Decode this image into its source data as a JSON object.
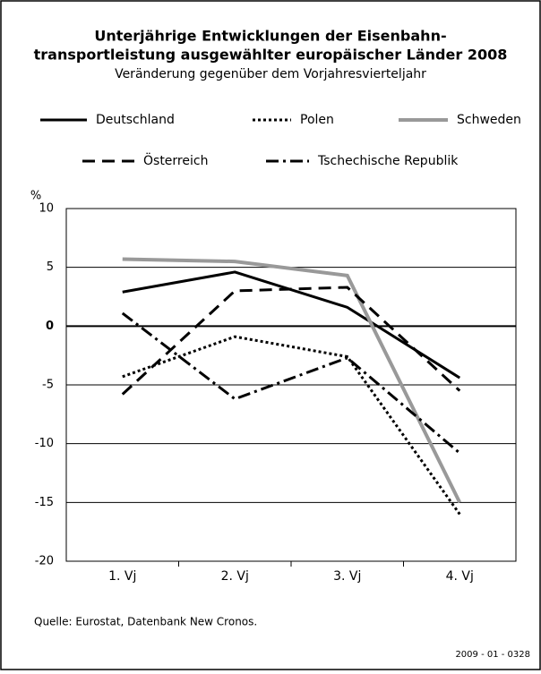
{
  "chart_data": {
    "type": "line",
    "title": [
      "Unterjährige Entwicklungen der Eisenbahn-",
      "transportleistung ausgewählter europäischer Länder 2008"
    ],
    "subtitle": "Veränderung gegenüber dem Vorjahresvierteljahr",
    "y_unit": "%",
    "categories": [
      "1. Vj",
      "2. Vj",
      "3. Vj",
      "4. Vj"
    ],
    "series": [
      {
        "name": "Deutschland",
        "color": "#000000",
        "linestyle": "solid",
        "values": [
          2.9,
          4.6,
          1.6,
          -4.4
        ]
      },
      {
        "name": "Polen",
        "color": "#000000",
        "linestyle": "dotted",
        "values": [
          -4.3,
          -0.9,
          -2.6,
          -16.0
        ]
      },
      {
        "name": "Schweden",
        "color": "#999999",
        "linestyle": "solid",
        "values": [
          5.7,
          5.5,
          4.3,
          -15.0
        ]
      },
      {
        "name": "Österreich",
        "color": "#000000",
        "linestyle": "dashed",
        "values": [
          -5.8,
          3.0,
          3.3,
          -5.5
        ]
      },
      {
        "name": "Tschechische Republik",
        "color": "#000000",
        "linestyle": "dashdot",
        "values": [
          1.1,
          -6.2,
          -2.7,
          -10.8
        ]
      }
    ],
    "ylim": [
      -20,
      10
    ],
    "yticks": [
      10,
      5,
      0,
      -5,
      -10,
      -15,
      -20
    ],
    "grid": true,
    "source": "Quelle: Eurostat, Datenbank New Cronos.",
    "code": "2009 - 01 - 0328"
  }
}
